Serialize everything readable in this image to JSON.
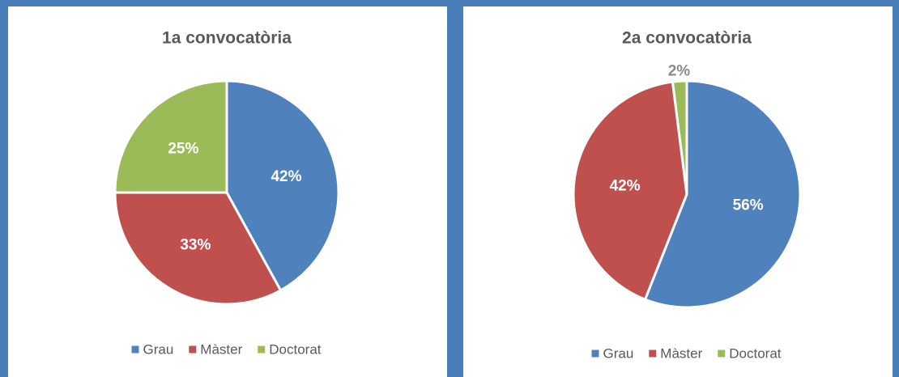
{
  "chart_data": [
    {
      "type": "pie",
      "title": "1a convocatòria",
      "categories": [
        "Grau",
        "Màster",
        "Doctorat"
      ],
      "values": [
        42,
        33,
        25
      ],
      "value_labels": [
        "42%",
        "33%",
        "25%"
      ],
      "colors": [
        "#4f81bd",
        "#c0504d",
        "#9bbb59"
      ],
      "legend": "bottom"
    },
    {
      "type": "pie",
      "title": "2a convocatòria",
      "categories": [
        "Grau",
        "Màster",
        "Doctorat"
      ],
      "values": [
        56,
        42,
        2
      ],
      "value_labels": [
        "56%",
        "42%",
        "2%"
      ],
      "colors": [
        "#4f81bd",
        "#c0504d",
        "#9bbb59"
      ],
      "legend": "bottom"
    }
  ]
}
